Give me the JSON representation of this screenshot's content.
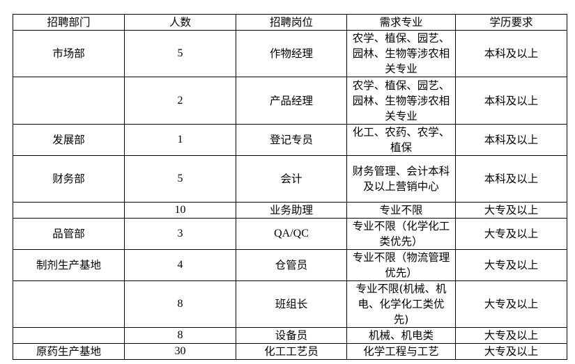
{
  "headers": [
    "招聘部门",
    "人数",
    "招聘岗位",
    "需求专业",
    "学历要求"
  ],
  "rows": [
    {
      "dept": "市场部",
      "count": "5",
      "position": "作物经理",
      "major": "农学、植保、园艺、园林、生物等涉农相关专业",
      "edu": "本科及以上"
    },
    {
      "dept": "",
      "count": "2",
      "position": "产品经理",
      "major": "农学、植保、园艺、园林、生物等涉农相关专业",
      "edu": "本科及以上"
    },
    {
      "dept": "发展部",
      "count": "1",
      "position": "登记专员",
      "major": "化工、农药、农学、植保",
      "edu": "本科及以上"
    },
    {
      "dept": "财务部",
      "count": "5",
      "position": "会计",
      "major": "财务管理、会计本科及以上营销中心",
      "edu": "本科及以上"
    },
    {
      "dept": "",
      "count": "10",
      "position": "业务助理",
      "major": "专业不限",
      "edu": "大专及以上"
    },
    {
      "dept": "品管部",
      "count": "3",
      "position": "QA/QC",
      "major": "专业不限（化学化工类优先）",
      "edu": "大专及以上"
    },
    {
      "dept": "制剂生产基地",
      "count": "4",
      "position": "仓管员",
      "major": "专业不限（物流管理优先）",
      "edu": "大专及以上"
    },
    {
      "dept": "",
      "count": "8",
      "position": "班组长",
      "major": "专业不限(机械、机电、化学化工类优先)",
      "edu": "大专及以上"
    },
    {
      "dept": "",
      "count": "8",
      "position": "设备员",
      "major": "机械、机电类",
      "edu": "大专及以上"
    },
    {
      "dept": "原药生产基地",
      "count": "30",
      "position": "化工工艺员",
      "major": "化学工程与工艺",
      "edu": "大专及以上"
    }
  ]
}
